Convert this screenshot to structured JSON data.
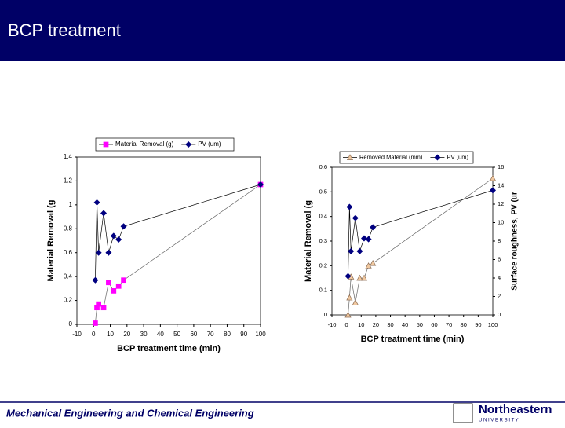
{
  "header": {
    "title": "BCP treatment"
  },
  "footer": {
    "text": "Mechanical Engineering and Chemical Engineering",
    "logo": "Northeastern",
    "logo_sub": "U N I V E R S I T Y"
  },
  "chart_data": [
    {
      "type": "scatter",
      "x_label": "BCP treatment time (min)",
      "y_label": "Material Removal (g",
      "xlim": [
        -10,
        100
      ],
      "xticks": [
        -10,
        0,
        10,
        20,
        30,
        40,
        50,
        60,
        70,
        80,
        90,
        100
      ],
      "ylim": [
        0,
        1.4
      ],
      "yticks": [
        0,
        0.2,
        0.4,
        0.6,
        0.8,
        1,
        1.2,
        1.4
      ],
      "series": [
        {
          "name": "Material Removal (g)",
          "color": "#ff00ff",
          "marker": "square",
          "x": [
            1,
            2,
            3,
            6,
            9,
            12,
            15,
            18,
            100
          ],
          "values": [
            0.01,
            0.14,
            0.17,
            0.14,
            0.35,
            0.28,
            0.32,
            0.37,
            1.17
          ]
        },
        {
          "name": "PV (um)",
          "color": "#000080",
          "marker": "diamond",
          "x": [
            1,
            2,
            3,
            6,
            9,
            12,
            15,
            18,
            100
          ],
          "values": [
            0.37,
            1.02,
            0.6,
            0.93,
            0.6,
            0.74,
            0.71,
            0.82,
            1.17
          ]
        }
      ]
    },
    {
      "type": "scatter",
      "x_label": "BCP treatment time (min)",
      "y_label": "Material Removal (g",
      "y2_label": "Surface roughness, PV (ur",
      "xlim": [
        -10,
        100
      ],
      "xticks": [
        -10,
        0,
        10,
        20,
        30,
        40,
        50,
        60,
        70,
        80,
        90,
        100
      ],
      "ylim": [
        0,
        0.6
      ],
      "yticks": [
        0,
        0.1,
        0.2,
        0.3,
        0.4,
        0.5,
        0.6
      ],
      "y2lim": [
        0,
        16
      ],
      "y2ticks": [
        0,
        2,
        4,
        6,
        8,
        10,
        12,
        14,
        16
      ],
      "series": [
        {
          "name": "Removed Material (mm)",
          "color": "#f0c8a0",
          "marker": "triangle",
          "x": [
            1,
            2,
            3,
            6,
            9,
            12,
            15,
            18,
            100
          ],
          "values": [
            0,
            0.07,
            0.155,
            0.05,
            0.15,
            0.15,
            0.2,
            0.21,
            0.555
          ]
        },
        {
          "name": "PV (um)",
          "color": "#000080",
          "marker": "diamond",
          "axis": "y2",
          "x": [
            1,
            2,
            3,
            6,
            9,
            12,
            15,
            18,
            100
          ],
          "values": [
            4.2,
            11.7,
            6.9,
            10.5,
            6.9,
            8.3,
            8.2,
            9.5,
            13.5
          ]
        }
      ]
    }
  ]
}
